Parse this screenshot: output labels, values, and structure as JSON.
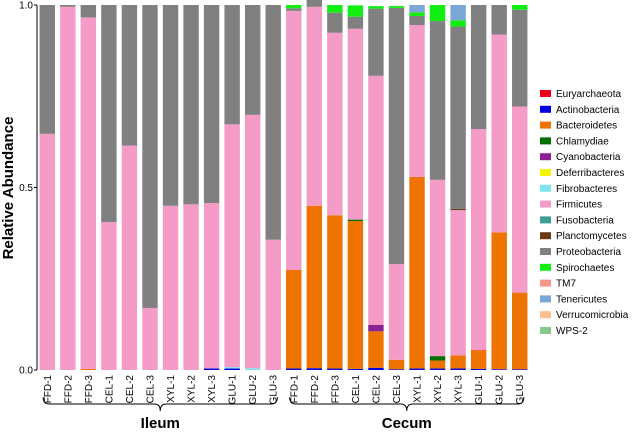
{
  "chart_data": {
    "type": "bar",
    "stacked": true,
    "title": "",
    "xlabel": "",
    "ylabel": "Relative Abundance",
    "ylim": [
      0,
      1
    ],
    "yticks": [
      "0.0",
      "0.5",
      "1.0"
    ],
    "grid": false,
    "legend_position": "right",
    "categories": [
      "FFD-1",
      "FFD-2",
      "FFD-3",
      "CEL-1",
      "CEL-2",
      "CEL-3",
      "XYL-1",
      "XYL-2",
      "XYL-3",
      "GLU-1",
      "GLU-2",
      "GLU-3",
      "FFD-1",
      "FFD-2",
      "FFD-3",
      "CEL-1",
      "CEL-2",
      "CEL-3",
      "XYL-1",
      "XYL-2",
      "XYL-3",
      "GLU-1",
      "GLU-2",
      "GLU-3"
    ],
    "groups": [
      {
        "label": "Ileum",
        "start": 0,
        "end": 11
      },
      {
        "label": "Cecum",
        "start": 12,
        "end": 23
      }
    ],
    "series": [
      {
        "name": "Euryarchaeota",
        "color": "#e8001c",
        "values": [
          0,
          0,
          0,
          0,
          0,
          0,
          0,
          0,
          0,
          0,
          0,
          0,
          0,
          0,
          0,
          0,
          0,
          0,
          0,
          0,
          0,
          0,
          0,
          0
        ]
      },
      {
        "name": "Actinobacteria",
        "color": "#0000e0",
        "values": [
          0,
          0,
          0,
          0,
          0,
          0,
          0,
          0,
          0.004,
          0.004,
          0,
          0,
          0.004,
          0.005,
          0.004,
          0.003,
          0.006,
          0.002,
          0.004,
          0.004,
          0.004,
          0.003,
          0.002,
          0.002
        ]
      },
      {
        "name": "Bacteroidetes",
        "color": "#ef7300",
        "values": [
          0,
          0,
          0.003,
          0,
          0,
          0,
          0,
          0,
          0,
          0,
          0,
          0,
          0.27,
          0.445,
          0.42,
          0.405,
          0.1,
          0.026,
          0.525,
          0.022,
          0.036,
          0.052,
          0.375,
          0.21
        ]
      },
      {
        "name": "Chlamydiae",
        "color": "#006f00",
        "values": [
          0,
          0,
          0,
          0,
          0,
          0,
          0,
          0,
          0,
          0,
          0,
          0,
          0,
          0,
          0,
          0.004,
          0,
          0,
          0,
          0.012,
          0,
          0,
          0,
          0
        ]
      },
      {
        "name": "Cyanobacteria",
        "color": "#8b2291",
        "values": [
          0,
          0,
          0,
          0,
          0,
          0,
          0,
          0,
          0,
          0,
          0,
          0,
          0,
          0,
          0,
          0,
          0.018,
          0,
          0,
          0,
          0,
          0,
          0,
          0
        ]
      },
      {
        "name": "Deferribacteres",
        "color": "#f5f500",
        "values": [
          0,
          0,
          0,
          0,
          0,
          0,
          0,
          0,
          0,
          0,
          0,
          0,
          0,
          0,
          0,
          0,
          0,
          0,
          0,
          0,
          0,
          0,
          0,
          0
        ]
      },
      {
        "name": "Fibrobacteres",
        "color": "#7fe3f0",
        "values": [
          0,
          0,
          0,
          0,
          0,
          0,
          0,
          0,
          0,
          0.004,
          0.005,
          0,
          0,
          0,
          0,
          0,
          0,
          0,
          0,
          0,
          0,
          0,
          0,
          0
        ]
      },
      {
        "name": "Firmicutes",
        "color": "#f49bc7",
        "values": [
          0.647,
          0.995,
          0.963,
          0.405,
          0.615,
          0.17,
          0.45,
          0.454,
          0.453,
          0.665,
          0.694,
          0.357,
          0.71,
          0.545,
          0.5,
          0.523,
          0.682,
          0.262,
          0.416,
          0.483,
          0.398,
          0.605,
          0.542,
          0.51
        ]
      },
      {
        "name": "Fusobacteria",
        "color": "#3c9f96",
        "values": [
          0,
          0,
          0,
          0,
          0,
          0,
          0,
          0,
          0,
          0,
          0,
          0,
          0,
          0,
          0,
          0,
          0,
          0,
          0,
          0,
          0,
          0,
          0,
          0
        ]
      },
      {
        "name": "Planctomycetes",
        "color": "#6b3a14",
        "values": [
          0,
          0,
          0,
          0,
          0,
          0,
          0,
          0,
          0,
          0,
          0,
          0,
          0,
          0,
          0,
          0,
          0,
          0,
          0,
          0,
          0.003,
          0,
          0,
          0
        ]
      },
      {
        "name": "Proteobacteria",
        "color": "#808080",
        "values": [
          0.353,
          0.005,
          0.034,
          0.595,
          0.385,
          0.83,
          0.55,
          0.546,
          0.543,
          0.327,
          0.301,
          0.643,
          0.007,
          0.045,
          0.055,
          0.033,
          0.184,
          0.702,
          0.025,
          0.435,
          0.5,
          0.34,
          0.081,
          0.265
        ]
      },
      {
        "name": "Spirochaetes",
        "color": "#11ee11",
        "values": [
          0,
          0,
          0,
          0,
          0,
          0,
          0,
          0,
          0,
          0,
          0,
          0,
          0.009,
          0.005,
          0.021,
          0.031,
          0.007,
          0.005,
          0.01,
          0.044,
          0.017,
          0,
          0,
          0.013
        ]
      },
      {
        "name": "TM7",
        "color": "#f39886",
        "values": [
          0,
          0,
          0,
          0,
          0,
          0,
          0,
          0,
          0,
          0,
          0,
          0,
          0,
          0,
          0,
          0,
          0,
          0,
          0,
          0,
          0,
          0,
          0,
          0
        ]
      },
      {
        "name": "Tenericutes",
        "color": "#7ba7d6",
        "values": [
          0,
          0,
          0,
          0,
          0,
          0,
          0,
          0,
          0,
          0,
          0,
          0,
          0,
          0,
          0,
          0,
          0,
          0,
          0.02,
          0,
          0.042,
          0,
          0,
          0
        ]
      },
      {
        "name": "Verrucomicrobia",
        "color": "#fac08f",
        "values": [
          0,
          0,
          0,
          0,
          0,
          0,
          0,
          0,
          0,
          0,
          0,
          0,
          0,
          0,
          0,
          0,
          0,
          0,
          0,
          0,
          0,
          0,
          0,
          0
        ]
      },
      {
        "name": "WPS-2",
        "color": "#88c98a",
        "values": [
          0,
          0,
          0,
          0,
          0,
          0,
          0,
          0,
          0,
          0,
          0,
          0,
          0,
          0,
          0,
          0,
          0,
          0,
          0,
          0,
          0,
          0,
          0,
          0
        ]
      }
    ]
  }
}
